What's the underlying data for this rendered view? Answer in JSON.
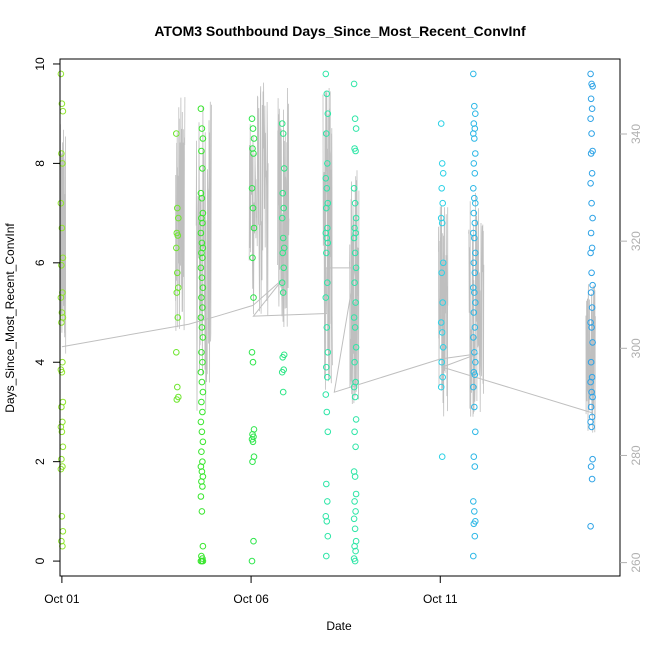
{
  "chart_data": {
    "type": "scatter",
    "title": "ATOM3 Southbound Days_Since_Most_Recent_ConvInf",
    "xlabel": "Date",
    "ylabel": "Days_Since_Most_Recent_ConvInf",
    "x_ticks": [
      "Oct 01",
      "Oct 06",
      "Oct 11"
    ],
    "x_tick_days": [
      1,
      6,
      11
    ],
    "xlim": [
      0.95,
      15.75
    ],
    "y_ticks": [
      "0",
      "2",
      "4",
      "6",
      "8",
      "10"
    ],
    "ylim": [
      -0.3,
      10.1
    ],
    "y2_ticks": [
      "260",
      "280",
      "300",
      "320",
      "340"
    ],
    "y2lim": [
      257.5,
      354
    ],
    "grid": false,
    "point_colors": [
      "#8fe62e",
      "#6ee62e",
      "#39e62e",
      "#2ee64b",
      "#2ee686",
      "#2ee6a7",
      "#2ed1e6",
      "#2eb8e6",
      "#2ea3e6"
    ],
    "series": [
      {
        "day": 1.0,
        "color": "#8fe62e",
        "y": [
          9.8,
          9.2,
          9.05,
          8.2,
          8.0,
          7.2,
          6.7,
          6.1,
          5.95,
          5.4,
          5.3,
          5.0,
          4.9,
          4.8,
          4.0,
          3.85,
          3.8,
          3.2,
          3.1,
          2.8,
          2.7,
          2.6,
          2.3,
          2.05,
          1.9,
          1.85,
          0.9,
          0.6,
          0.4,
          0.3
        ]
      },
      {
        "day": 4.05,
        "color": "#6ee62e",
        "y": [
          8.6,
          7.1,
          6.9,
          6.6,
          6.55,
          6.3,
          5.8,
          5.5,
          5.4,
          4.9,
          4.2,
          3.5,
          3.3,
          3.25
        ]
      },
      {
        "day": 4.7,
        "color": "#39e62e",
        "y": [
          9.1,
          8.7,
          8.5,
          8.25,
          7.9,
          7.4,
          7.3,
          7.0,
          6.9,
          6.8,
          6.6,
          6.4,
          6.3,
          6.2,
          6.1,
          5.9,
          5.7,
          5.5,
          5.3,
          5.1,
          4.9,
          4.7,
          4.5,
          4.2,
          4.0,
          3.8,
          3.6,
          3.4,
          3.2,
          3.0,
          2.8,
          2.6,
          2.4,
          2.2,
          2.0,
          1.9,
          1.8,
          1.7,
          1.6,
          1.5,
          1.3,
          1.0,
          0.3,
          0.1,
          0.05,
          0.0,
          0.0,
          0.0
        ]
      },
      {
        "day": 6.05,
        "color": "#2ee64b",
        "y": [
          8.9,
          8.7,
          8.5,
          8.3,
          8.2,
          7.5,
          7.1,
          6.7,
          6.1,
          5.3,
          4.2,
          4.0,
          2.65,
          2.55,
          2.5,
          2.45,
          2.4,
          2.1,
          2.0,
          0.4,
          0.0
        ]
      },
      {
        "day": 6.85,
        "color": "#2ee686",
        "y": [
          8.8,
          8.6,
          7.9,
          7.4,
          7.1,
          6.9,
          6.5,
          6.3,
          6.2,
          5.9,
          5.6,
          5.4,
          4.15,
          4.1,
          3.85,
          3.8,
          3.4
        ]
      },
      {
        "day": 8.0,
        "color": "#2ee6a7",
        "y": [
          9.8,
          9.4,
          9.0,
          8.6,
          8.0,
          7.7,
          7.5,
          7.2,
          7.1,
          6.7,
          6.6,
          6.5,
          6.4,
          6.2,
          5.6,
          5.3,
          4.7,
          4.2,
          3.9,
          3.7,
          3.35,
          3.0,
          2.6,
          1.55,
          1.2,
          0.9,
          0.8,
          0.5,
          0.1
        ]
      },
      {
        "day": 8.75,
        "color": "#2ee6a7",
        "y": [
          9.6,
          8.9,
          8.7,
          8.3,
          8.25,
          7.5,
          7.2,
          6.9,
          6.7,
          6.6,
          6.5,
          6.2,
          5.9,
          5.6,
          5.2,
          4.9,
          4.7,
          4.3,
          4.0,
          3.6,
          3.5,
          3.3,
          2.85,
          2.6,
          2.3,
          1.8,
          1.7,
          1.35,
          1.2,
          1.0,
          0.85,
          0.65,
          0.4,
          0.3,
          0.2,
          0.05,
          0.0
        ]
      },
      {
        "day": 11.05,
        "color": "#2ed1e6",
        "y": [
          8.8,
          8.0,
          7.8,
          7.5,
          7.2,
          6.9,
          6.8,
          6.0,
          5.8,
          5.2,
          4.8,
          4.6,
          4.3,
          4.0,
          3.7,
          3.5,
          2.1
        ]
      },
      {
        "day": 11.9,
        "color": "#2eb8e6",
        "y": [
          9.8,
          9.15,
          9.0,
          8.8,
          8.7,
          8.6,
          8.5,
          8.2,
          8.0,
          7.8,
          7.5,
          7.3,
          7.2,
          7.0,
          6.8,
          6.6,
          6.5,
          6.2,
          6.0,
          5.8,
          5.5,
          5.4,
          5.2,
          5.0,
          4.7,
          4.5,
          4.2,
          4.0,
          3.8,
          3.75,
          3.5,
          3.1,
          2.6,
          2.1,
          1.9,
          1.2,
          1.0,
          0.8,
          0.75,
          0.5,
          0.1
        ]
      },
      {
        "day": 15.0,
        "color": "#2ea3e6",
        "y": [
          9.8,
          9.6,
          9.55,
          9.3,
          9.1,
          8.9,
          8.6,
          8.25,
          8.2,
          7.8,
          7.6,
          7.2,
          6.9,
          6.6,
          6.3,
          6.2,
          5.8,
          5.55,
          5.4,
          5.1,
          4.8,
          4.7,
          4.4,
          4.0,
          3.7,
          3.6,
          3.4,
          3.3,
          3.1,
          2.9,
          2.8,
          2.7,
          2.05,
          1.9,
          1.65,
          0.7
        ]
      }
    ],
    "point_style": "open circle",
    "line_series": {
      "name": "",
      "color": "#bfbfbf",
      "axis": "right",
      "points": [
        [
          1.0,
          300.3
        ],
        [
          4.35,
          304.5
        ],
        [
          5.1,
          306
        ],
        [
          6.05,
          308
        ],
        [
          6.85,
          313
        ],
        [
          6.06,
          306
        ],
        [
          8.0,
          306.5
        ],
        [
          7.98,
          315
        ],
        [
          8.75,
          315
        ],
        [
          8.2,
          291.8
        ],
        [
          11.0,
          298
        ],
        [
          12.0,
          299
        ],
        [
          11.05,
          296.5
        ],
        [
          15.0,
          288
        ]
      ]
    },
    "line_bursts": [
      {
        "x": [
          0.95,
          1.1
        ],
        "range": [
          298,
          342
        ]
      },
      {
        "x": [
          4.0,
          4.25
        ],
        "range": [
          303,
          347
        ]
      },
      {
        "x": [
          4.55,
          4.95
        ],
        "range": [
          288,
          347
        ]
      },
      {
        "x": [
          5.95,
          6.45
        ],
        "range": [
          305,
          350
        ]
      },
      {
        "x": [
          6.7,
          7.0
        ],
        "range": [
          302,
          349
        ]
      },
      {
        "x": [
          7.9,
          8.15
        ],
        "range": [
          292,
          349
        ]
      },
      {
        "x": [
          8.6,
          8.85
        ],
        "range": [
          289,
          335
        ]
      },
      {
        "x": [
          10.95,
          11.2
        ],
        "range": [
          287,
          328
        ]
      },
      {
        "x": [
          11.75,
          12.15
        ],
        "range": [
          287,
          330
        ]
      },
      {
        "x": [
          14.85,
          15.1
        ],
        "range": [
          284,
          312
        ]
      }
    ]
  }
}
